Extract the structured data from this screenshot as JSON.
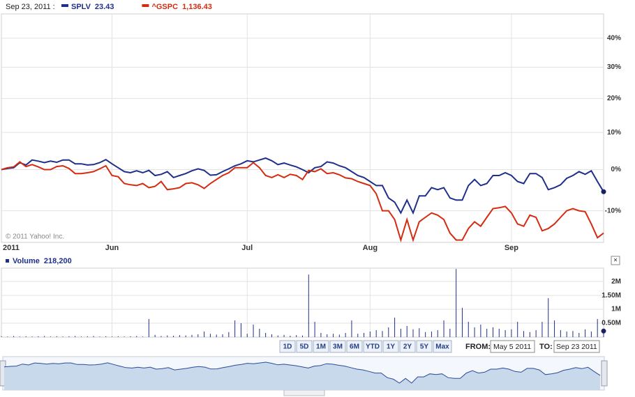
{
  "header": {
    "date": "Sep 23, 2011 :"
  },
  "chart_data": [
    {
      "type": "line",
      "categories": [
        "2011",
        null,
        null,
        null,
        null,
        null,
        null,
        null,
        null,
        null,
        null,
        null,
        null,
        null,
        null,
        null,
        null,
        null,
        "Jun",
        null,
        null,
        null,
        null,
        null,
        null,
        null,
        null,
        null,
        null,
        null,
        null,
        null,
        null,
        null,
        null,
        null,
        null,
        null,
        null,
        null,
        "Jul",
        null,
        null,
        null,
        null,
        null,
        null,
        null,
        null,
        null,
        null,
        null,
        null,
        null,
        null,
        null,
        null,
        null,
        null,
        null,
        "Aug",
        null,
        null,
        null,
        null,
        null,
        null,
        null,
        null,
        null,
        null,
        null,
        null,
        null,
        null,
        null,
        null,
        null,
        null,
        null,
        null,
        null,
        null,
        "Sep",
        null,
        null,
        null,
        null,
        null,
        null,
        null,
        null,
        null,
        null,
        null,
        null,
        null,
        null,
        null
      ],
      "series": [
        {
          "name": "SPLV",
          "color": "#1f2f8a",
          "last": "23.43",
          "values": [
            0,
            0.3,
            0.5,
            1.8,
            1.2,
            2.5,
            2.2,
            1.8,
            2.2,
            1.9,
            2.5,
            2.5,
            1.5,
            1.5,
            1.2,
            1.3,
            1.8,
            2.6,
            1.5,
            0.5,
            -0.5,
            -0.8,
            -0.3,
            -0.8,
            -0.2,
            -1.5,
            -1.2,
            -0.5,
            -2,
            -1.5,
            -1,
            -0.3,
            0.2,
            -0.2,
            -1.4,
            -1.3,
            -0.5,
            0.2,
            1,
            1.5,
            2.3,
            2,
            2.5,
            3,
            2.3,
            1.3,
            1.7,
            1.2,
            0.7,
            0,
            -0.8,
            0.5,
            0.8,
            2,
            1.7,
            1,
            0.5,
            -0.5,
            -1.5,
            -2,
            -3,
            -4,
            -4,
            -7,
            -8,
            -10.5,
            -7.5,
            -10.5,
            -6.5,
            -6.5,
            -4.5,
            -5,
            -4.5,
            -7,
            -7.5,
            -7.5,
            -4,
            -2.5,
            -4,
            -3.5,
            -1.5,
            -1.5,
            -0.8,
            -1.5,
            -3,
            -3.5,
            -1,
            -1,
            -2,
            -5,
            -4.5,
            -3.8,
            -2.2,
            -1.5,
            -0.5,
            -1.2,
            -0.3,
            -3,
            -5.5
          ]
        },
        {
          "name": "^GSPC",
          "color": "#d52b10",
          "last": "1,136.43",
          "values": [
            0,
            0.5,
            0.7,
            2,
            0.8,
            1.3,
            0.7,
            0,
            0,
            0.8,
            1,
            0.3,
            -1,
            -1,
            -0.8,
            -0.5,
            0.2,
            1,
            -1.5,
            -1.8,
            -3.5,
            -3.8,
            -4,
            -3.5,
            -4.5,
            -4.2,
            -3,
            -5,
            -4.8,
            -4.5,
            -3.5,
            -3.3,
            -3.8,
            -4.7,
            -3.5,
            -2.5,
            -1.5,
            -0.8,
            0.5,
            0.5,
            0.5,
            1.8,
            0.5,
            -1.5,
            -2,
            -1.3,
            -2,
            -1.2,
            -1.5,
            -2.5,
            -0.2,
            -0.5,
            0.2,
            -1,
            -0.8,
            -1.3,
            -2.1,
            -2.3,
            -3,
            -3.5,
            -4,
            -6,
            -10,
            -10,
            -12,
            -16.5,
            -12,
            -16.5,
            -12.5,
            -11.5,
            -10.5,
            -11,
            -12,
            -15,
            -16.5,
            -16.5,
            -14,
            -12.5,
            -13.5,
            -11.5,
            -9.5,
            -9.3,
            -9,
            -10.5,
            -13,
            -13.5,
            -11,
            -11.5,
            -14.5,
            -14,
            -13,
            -11.5,
            -10,
            -9.5,
            -10,
            -10.2,
            -13,
            -16,
            -15
          ]
        }
      ],
      "ylim": [
        -17,
        49
      ],
      "yticks": [
        {
          "value": -10,
          "label": "-10%"
        },
        {
          "value": 0,
          "label": "0%"
        },
        {
          "value": 10,
          "label": "10%"
        },
        {
          "value": 20,
          "label": "20%"
        },
        {
          "value": 30,
          "label": "30%"
        },
        {
          "value": 40,
          "label": "40%"
        }
      ],
      "log_scale": true,
      "grid": true,
      "credit": "© 2011 Yahoo! Inc."
    },
    {
      "type": "bar",
      "series": [
        {
          "name": "Volume",
          "color": "#1f2f8a",
          "last": "218,200",
          "values": [
            30000,
            20000,
            40000,
            20000,
            30000,
            20000,
            30000,
            40000,
            20000,
            30000,
            20000,
            30000,
            40000,
            20000,
            30000,
            40000,
            20000,
            30000,
            20000,
            30000,
            20000,
            30000,
            40000,
            20000,
            650000,
            80000,
            40000,
            60000,
            50000,
            70000,
            60000,
            80000,
            100000,
            200000,
            120000,
            90000,
            100000,
            180000,
            600000,
            500000,
            120000,
            450000,
            300000,
            150000,
            100000,
            60000,
            80000,
            50000,
            70000,
            60000,
            2250000,
            550000,
            150000,
            100000,
            120000,
            90000,
            150000,
            600000,
            120000,
            150000,
            200000,
            250000,
            220000,
            350000,
            700000,
            300000,
            400000,
            280000,
            320000,
            180000,
            200000,
            250000,
            600000,
            300000,
            2450000,
            1050000,
            550000,
            350000,
            450000,
            300000,
            350000,
            300000,
            250000,
            280000,
            550000,
            220000,
            180000,
            250000,
            550000,
            1400000,
            600000,
            250000,
            200000,
            220000,
            150000,
            280000,
            200000,
            650000,
            218200
          ]
        }
      ],
      "ylim": [
        0,
        2480000
      ],
      "yticks": [
        {
          "value": 500000,
          "label": "0.50M"
        },
        {
          "value": 1000000,
          "label": "1M"
        },
        {
          "value": 1500000,
          "label": "1.50M"
        },
        {
          "value": 2000000,
          "label": "2M"
        }
      ]
    }
  ],
  "controls": {
    "ranges": [
      "1D",
      "5D",
      "1M",
      "3M",
      "6M",
      "YTD",
      "1Y",
      "2Y",
      "5Y",
      "Max"
    ],
    "from_label": "FROM:",
    "from": "May 5 2011",
    "to_label": "TO:",
    "to": "Sep 23 2011"
  }
}
